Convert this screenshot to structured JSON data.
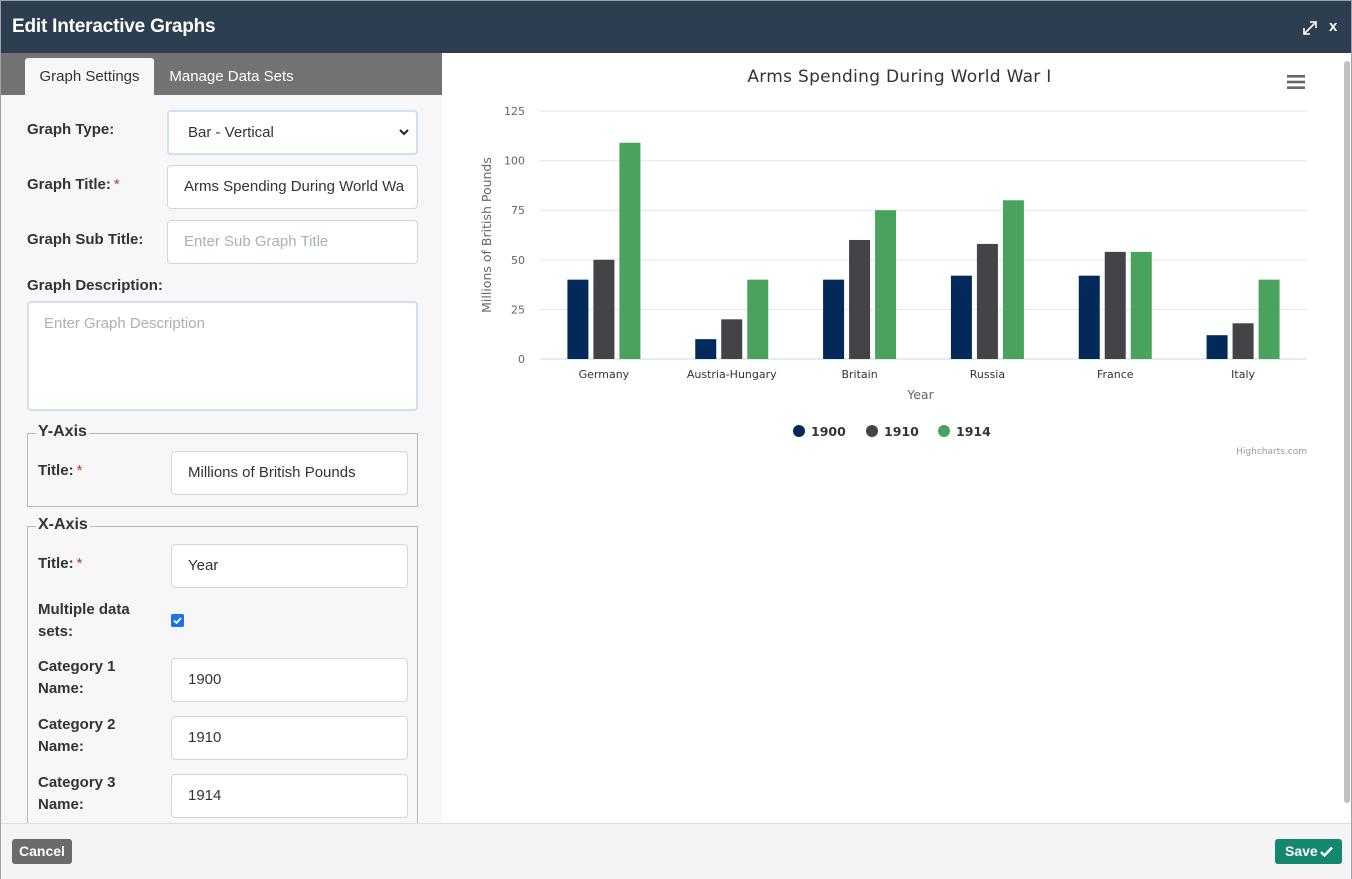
{
  "dialog": {
    "title": "Edit Interactive Graphs",
    "close_label": "x"
  },
  "tabs": {
    "graph_settings": "Graph Settings",
    "manage_data_sets": "Manage Data Sets"
  },
  "form": {
    "graph_type_label": "Graph Type:",
    "graph_type_value": "Bar - Vertical",
    "graph_title_label": "Graph Title:",
    "graph_title_value": "Arms Spending During World Wa",
    "graph_subtitle_label": "Graph Sub Title:",
    "graph_subtitle_placeholder": "Enter Sub Graph Title",
    "graph_description_label": "Graph Description:",
    "graph_description_placeholder": "Enter Graph Description",
    "required_mark": "*",
    "y_axis": {
      "legend": "Y-Axis",
      "title_label": "Title:",
      "title_value": "Millions of British Pounds"
    },
    "x_axis": {
      "legend": "X-Axis",
      "title_label": "Title:",
      "title_value": "Year",
      "multiple_label_line1": "Multiple data",
      "multiple_label_line2": "sets:",
      "multiple_checked": true,
      "categories": [
        {
          "label_line1": "Category 1",
          "label_line2": "Name:",
          "value": "1900"
        },
        {
          "label_line1": "Category 2",
          "label_line2": "Name:",
          "value": "1910"
        },
        {
          "label_line1": "Category 3",
          "label_line2": "Name:",
          "value": "1914"
        }
      ]
    }
  },
  "footer": {
    "cancel_label": "Cancel",
    "save_label": "Save"
  },
  "colors": {
    "header_bg": "#2c3e50",
    "tabbar_bg": "#737373",
    "save_bg": "#14876f",
    "series_1900": "#012a5b",
    "series_1910": "#434348",
    "series_1914": "#4aa35d"
  },
  "chart_data": {
    "type": "bar",
    "title": "Arms Spending During World War I",
    "xlabel": "Year",
    "ylabel": "Millions of British Pounds",
    "ylim": [
      0,
      125
    ],
    "yticks": [
      0,
      25,
      50,
      75,
      100,
      125
    ],
    "categories": [
      "Germany",
      "Austria-Hungary",
      "Britain",
      "Russia",
      "France",
      "Italy"
    ],
    "series": [
      {
        "name": "1900",
        "color": "#012a5b",
        "values": [
          40,
          10,
          40,
          42,
          42,
          12
        ]
      },
      {
        "name": "1910",
        "color": "#434348",
        "values": [
          50,
          20,
          60,
          58,
          54,
          18
        ]
      },
      {
        "name": "1914",
        "color": "#4aa35d",
        "values": [
          109,
          40,
          75,
          80,
          54,
          40
        ]
      }
    ],
    "legend_position": "bottom",
    "grid": true,
    "credits": "Highcharts.com"
  }
}
